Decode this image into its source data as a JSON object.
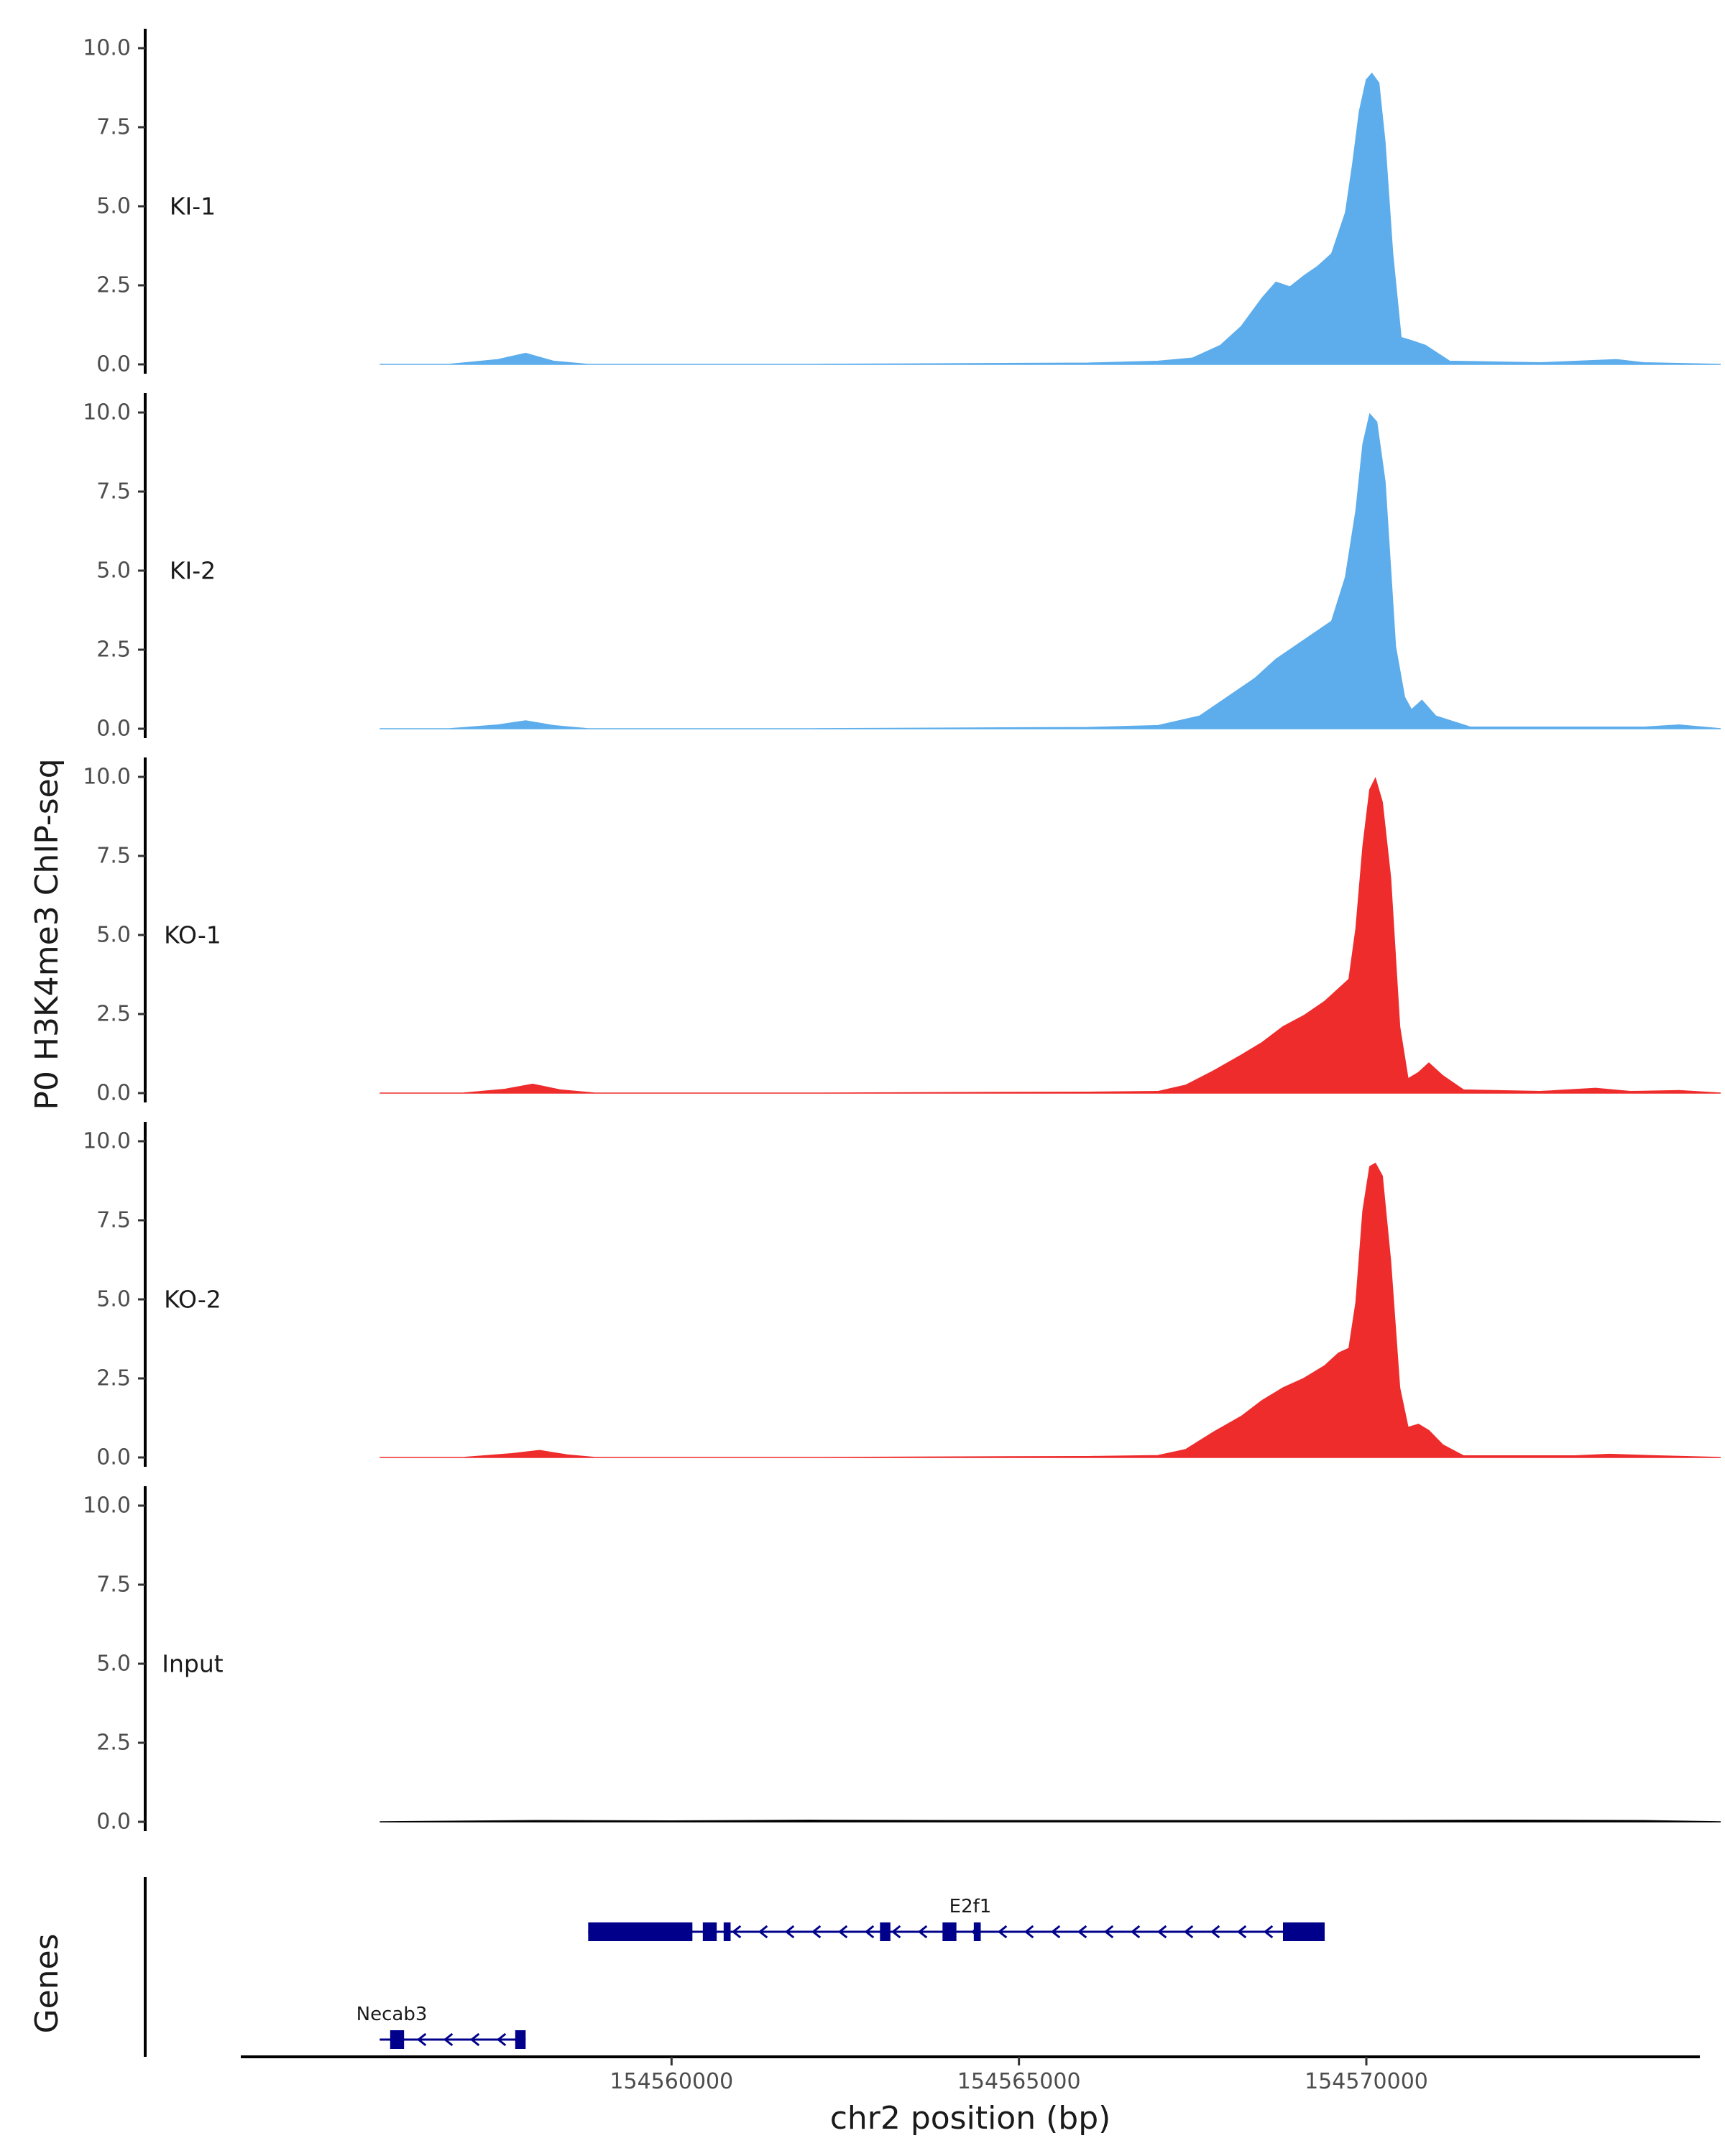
{
  "chart_data": {
    "type": "area",
    "title": "",
    "ylabel": "P0 H3K4me3 ChIP-seq",
    "xlabel": "chr2 position (bp)",
    "genes_label": "Genes",
    "xlim": [
      154553800,
      154574800
    ],
    "ylim": [
      0,
      10
    ],
    "y_ticks": [
      "0.0",
      "2.5",
      "5.0",
      "7.5",
      "10.0"
    ],
    "x_ticks": [
      {
        "value": 154560000,
        "label": "154560000"
      },
      {
        "value": 154565000,
        "label": "154565000"
      },
      {
        "value": 154570000,
        "label": "154570000"
      }
    ],
    "track_range": [
      154555800,
      154575100
    ],
    "colors": {
      "KI": "#5DADEC",
      "KO": "#EE2C2C",
      "Input": "#000000",
      "gene": "#00008B",
      "axis": "#000000"
    },
    "tracks": [
      {
        "name": "KI-1",
        "color": "#5DADEC",
        "points": [
          [
            154555800,
            0
          ],
          [
            154556800,
            0
          ],
          [
            154557500,
            0.15
          ],
          [
            154557900,
            0.35
          ],
          [
            154558300,
            0.1
          ],
          [
            154558800,
            0
          ],
          [
            154562000,
            0
          ],
          [
            154564000,
            0.02
          ],
          [
            154566000,
            0.04
          ],
          [
            154567000,
            0.1
          ],
          [
            154567500,
            0.2
          ],
          [
            154567900,
            0.6
          ],
          [
            154568200,
            1.2
          ],
          [
            154568500,
            2.1
          ],
          [
            154568700,
            2.6
          ],
          [
            154568900,
            2.45
          ],
          [
            154569100,
            2.8
          ],
          [
            154569300,
            3.1
          ],
          [
            154569500,
            3.5
          ],
          [
            154569700,
            4.8
          ],
          [
            154569800,
            6.3
          ],
          [
            154569900,
            8.0
          ],
          [
            154570000,
            9.0
          ],
          [
            154570080,
            9.2
          ],
          [
            154570180,
            8.9
          ],
          [
            154570270,
            7.0
          ],
          [
            154570380,
            3.5
          ],
          [
            154570500,
            0.85
          ],
          [
            154570650,
            0.75
          ],
          [
            154570850,
            0.6
          ],
          [
            154571200,
            0.1
          ],
          [
            154572500,
            0.05
          ],
          [
            154573600,
            0.15
          ],
          [
            154574000,
            0.05
          ],
          [
            154575100,
            0
          ]
        ]
      },
      {
        "name": "KI-2",
        "color": "#5DADEC",
        "points": [
          [
            154555800,
            0
          ],
          [
            154556800,
            0
          ],
          [
            154557500,
            0.12
          ],
          [
            154557900,
            0.25
          ],
          [
            154558300,
            0.1
          ],
          [
            154558800,
            0
          ],
          [
            154562000,
            0
          ],
          [
            154564000,
            0.02
          ],
          [
            154566000,
            0.04
          ],
          [
            154567000,
            0.1
          ],
          [
            154567600,
            0.4
          ],
          [
            154568000,
            1.0
          ],
          [
            154568400,
            1.6
          ],
          [
            154568700,
            2.2
          ],
          [
            154568900,
            2.5
          ],
          [
            154569100,
            2.8
          ],
          [
            154569300,
            3.1
          ],
          [
            154569500,
            3.4
          ],
          [
            154569700,
            4.8
          ],
          [
            154569850,
            6.9
          ],
          [
            154569950,
            9.0
          ],
          [
            154570050,
            9.95
          ],
          [
            154570150,
            9.7
          ],
          [
            154570270,
            7.8
          ],
          [
            154570420,
            2.6
          ],
          [
            154570550,
            1.0
          ],
          [
            154570650,
            0.6
          ],
          [
            154570800,
            0.9
          ],
          [
            154571000,
            0.4
          ],
          [
            154571500,
            0.05
          ],
          [
            154574000,
            0.05
          ],
          [
            154574500,
            0.12
          ],
          [
            154575100,
            0
          ]
        ]
      },
      {
        "name": "KO-1",
        "color": "#EE2C2C",
        "points": [
          [
            154555800,
            0
          ],
          [
            154557000,
            0
          ],
          [
            154557600,
            0.12
          ],
          [
            154558000,
            0.28
          ],
          [
            154558400,
            0.1
          ],
          [
            154558900,
            0
          ],
          [
            154562000,
            0
          ],
          [
            154564500,
            0.02
          ],
          [
            154566000,
            0.03
          ],
          [
            154567000,
            0.05
          ],
          [
            154567400,
            0.25
          ],
          [
            154567800,
            0.7
          ],
          [
            154568200,
            1.2
          ],
          [
            154568500,
            1.6
          ],
          [
            154568800,
            2.1
          ],
          [
            154569100,
            2.45
          ],
          [
            154569400,
            2.9
          ],
          [
            154569600,
            3.3
          ],
          [
            154569750,
            3.6
          ],
          [
            154569850,
            5.2
          ],
          [
            154569950,
            7.8
          ],
          [
            154570050,
            9.6
          ],
          [
            154570130,
            9.95
          ],
          [
            154570230,
            9.2
          ],
          [
            154570350,
            6.8
          ],
          [
            154570480,
            2.1
          ],
          [
            154570600,
            0.45
          ],
          [
            154570750,
            0.65
          ],
          [
            154570900,
            0.95
          ],
          [
            154571100,
            0.55
          ],
          [
            154571400,
            0.1
          ],
          [
            154572500,
            0.05
          ],
          [
            154573300,
            0.15
          ],
          [
            154573800,
            0.05
          ],
          [
            154574500,
            0.08
          ],
          [
            154575100,
            0
          ]
        ]
      },
      {
        "name": "KO-2",
        "color": "#EE2C2C",
        "points": [
          [
            154555800,
            0
          ],
          [
            154557000,
            0
          ],
          [
            154557700,
            0.12
          ],
          [
            154558100,
            0.22
          ],
          [
            154558500,
            0.08
          ],
          [
            154558900,
            0
          ],
          [
            154562000,
            0
          ],
          [
            154564500,
            0.02
          ],
          [
            154566000,
            0.03
          ],
          [
            154567000,
            0.06
          ],
          [
            154567400,
            0.25
          ],
          [
            154567800,
            0.8
          ],
          [
            154568200,
            1.3
          ],
          [
            154568500,
            1.8
          ],
          [
            154568800,
            2.2
          ],
          [
            154569100,
            2.5
          ],
          [
            154569400,
            2.9
          ],
          [
            154569600,
            3.3
          ],
          [
            154569750,
            3.45
          ],
          [
            154569850,
            4.9
          ],
          [
            154569950,
            7.8
          ],
          [
            154570050,
            9.2
          ],
          [
            154570130,
            9.3
          ],
          [
            154570230,
            8.9
          ],
          [
            154570350,
            6.2
          ],
          [
            154570480,
            2.2
          ],
          [
            154570600,
            0.95
          ],
          [
            154570750,
            1.05
          ],
          [
            154570900,
            0.85
          ],
          [
            154571100,
            0.4
          ],
          [
            154571400,
            0.05
          ],
          [
            154573000,
            0.05
          ],
          [
            154573500,
            0.1
          ],
          [
            154574200,
            0.05
          ],
          [
            154575100,
            0
          ]
        ]
      },
      {
        "name": "Input",
        "color": "#000000",
        "points": [
          [
            154555800,
            0
          ],
          [
            154558000,
            0.04
          ],
          [
            154560000,
            0.03
          ],
          [
            154562000,
            0.05
          ],
          [
            154564000,
            0.04
          ],
          [
            154566000,
            0.04
          ],
          [
            154568000,
            0.04
          ],
          [
            154570000,
            0.04
          ],
          [
            154572000,
            0.05
          ],
          [
            154574000,
            0.04
          ],
          [
            154575100,
            0
          ]
        ]
      }
    ],
    "genes": [
      {
        "name": "E2f1",
        "strand": "-",
        "start": 154558800,
        "end": 154569400,
        "exons": [
          [
            154558800,
            154560300
          ],
          [
            154560450,
            154560650
          ],
          [
            154560750,
            154560850
          ],
          [
            154563000,
            154563150
          ],
          [
            154563900,
            154564100
          ],
          [
            154564350,
            154564450
          ],
          [
            154568800,
            154569400
          ]
        ]
      },
      {
        "name": "Necab3",
        "strand": "-",
        "start": 154555800,
        "end": 154557900,
        "exons": [
          [
            154555950,
            154556150
          ],
          [
            154557750,
            154557900
          ]
        ]
      }
    ]
  }
}
